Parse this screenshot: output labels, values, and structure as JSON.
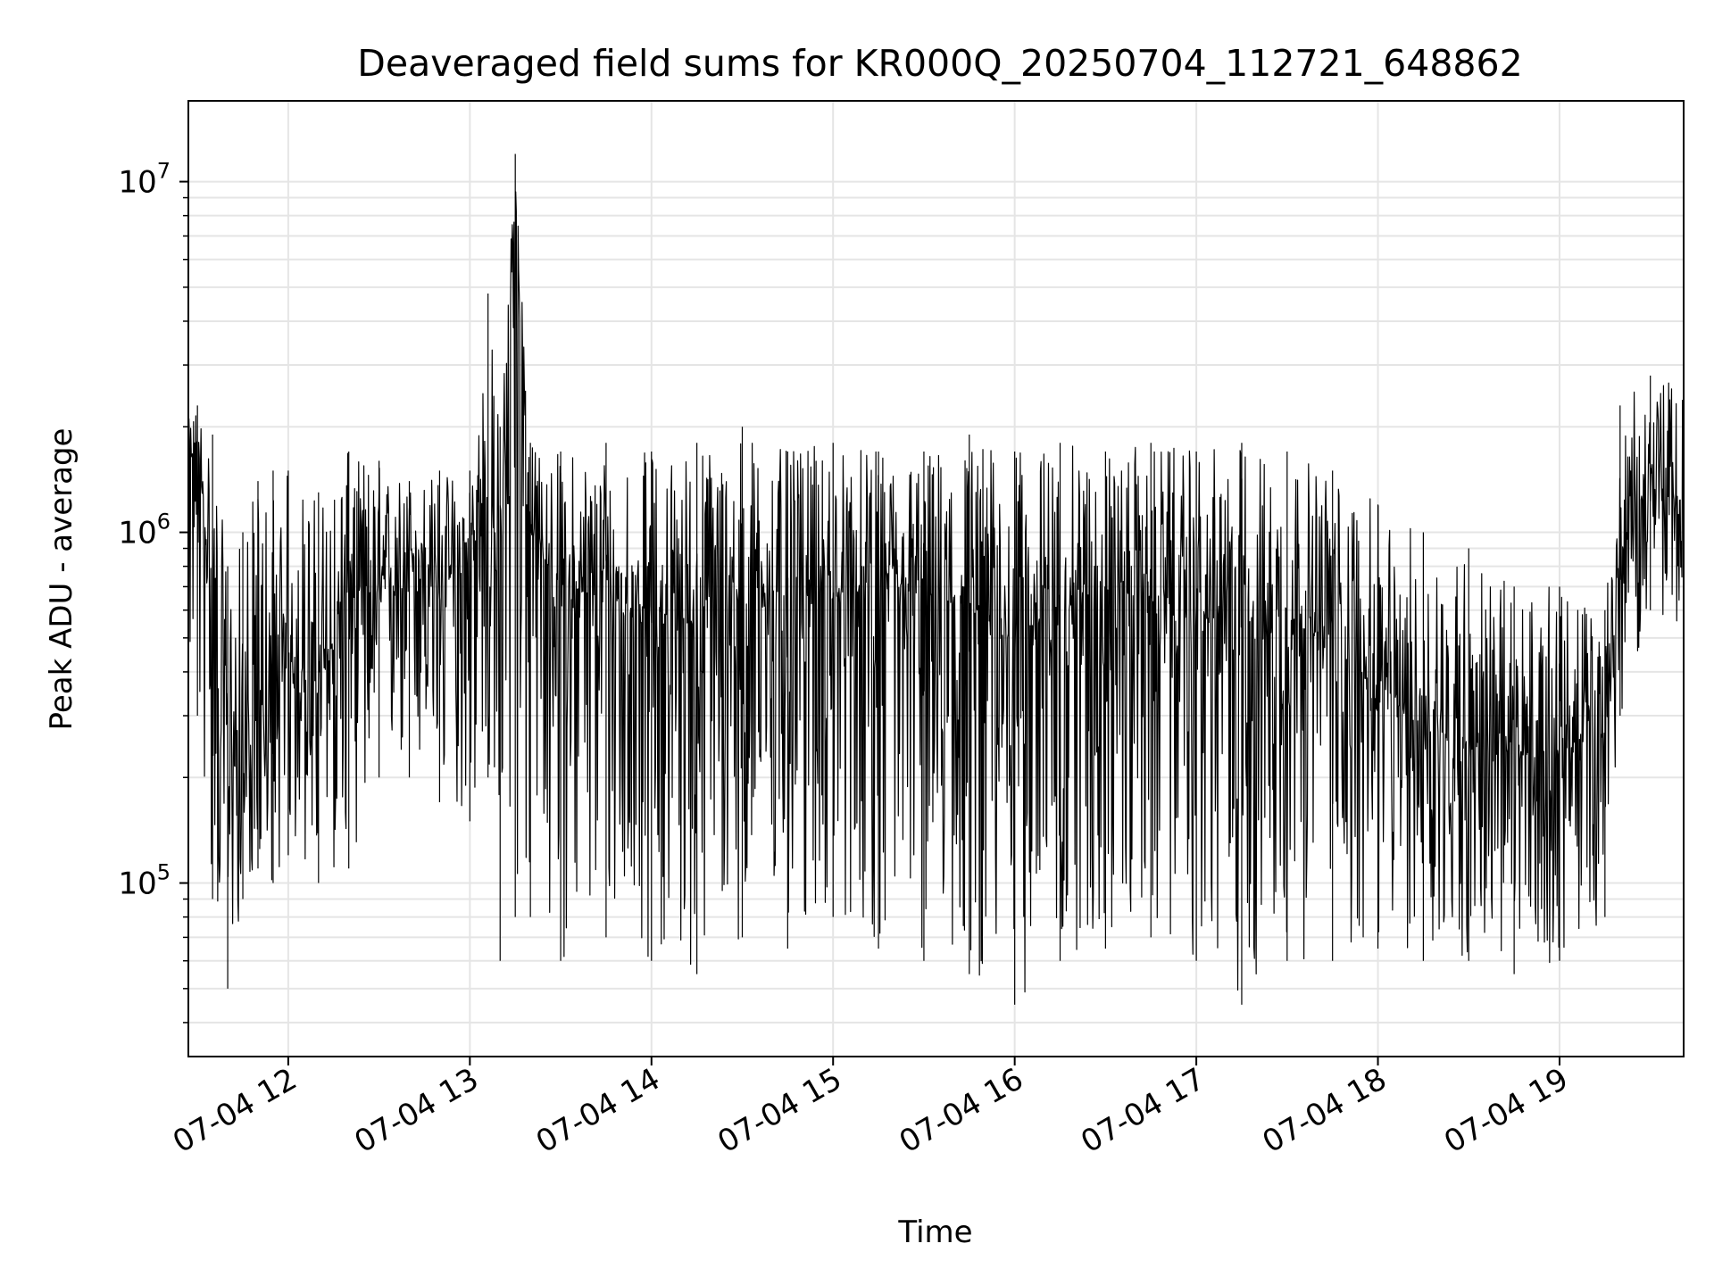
{
  "chart_data": {
    "type": "line",
    "title": "Deaveraged field sums for KR000Q_20250704_112721_648862",
    "xlabel": "Time",
    "ylabel": "Peak ADU - average",
    "yscale": "log",
    "grid": true,
    "line_color": "#000000",
    "grid_color": "#e5e5e5",
    "xlim": [
      "2025-07-04 11:27",
      "2025-07-04 19:41"
    ],
    "ylim": [
      32000,
      17000000
    ],
    "x_ticks": [
      {
        "value": "2025-07-04 12:00",
        "label": "07-04 12"
      },
      {
        "value": "2025-07-04 13:00",
        "label": "07-04 13"
      },
      {
        "value": "2025-07-04 14:00",
        "label": "07-04 14"
      },
      {
        "value": "2025-07-04 15:00",
        "label": "07-04 15"
      },
      {
        "value": "2025-07-04 16:00",
        "label": "07-04 16"
      },
      {
        "value": "2025-07-04 17:00",
        "label": "07-04 17"
      },
      {
        "value": "2025-07-04 18:00",
        "label": "07-04 18"
      },
      {
        "value": "2025-07-04 19:00",
        "label": "07-04 19"
      }
    ],
    "y_ticks": [
      {
        "value": 100000,
        "base": "10",
        "exp": "5"
      },
      {
        "value": 1000000,
        "base": "10",
        "exp": "6"
      },
      {
        "value": 10000000,
        "base": "10",
        "exp": "7"
      }
    ],
    "series": [
      {
        "x": [
          "2025-07-04 11:27",
          "2025-07-04 11:30",
          "2025-07-04 11:35",
          "2025-07-04 11:40",
          "2025-07-04 11:45",
          "2025-07-04 11:50",
          "2025-07-04 11:55",
          "2025-07-04 12:00",
          "2025-07-04 12:10",
          "2025-07-04 12:20",
          "2025-07-04 12:30",
          "2025-07-04 12:40",
          "2025-07-04 12:50",
          "2025-07-04 13:00",
          "2025-07-04 13:06",
          "2025-07-04 13:10",
          "2025-07-04 13:15",
          "2025-07-04 13:20",
          "2025-07-04 13:30",
          "2025-07-04 13:45",
          "2025-07-04 14:00",
          "2025-07-04 14:15",
          "2025-07-04 14:30",
          "2025-07-04 14:45",
          "2025-07-04 15:00",
          "2025-07-04 15:15",
          "2025-07-04 15:30",
          "2025-07-04 15:45",
          "2025-07-04 16:00",
          "2025-07-04 16:15",
          "2025-07-04 16:30",
          "2025-07-04 16:45",
          "2025-07-04 17:00",
          "2025-07-04 17:15",
          "2025-07-04 17:30",
          "2025-07-04 17:45",
          "2025-07-04 18:00",
          "2025-07-04 18:15",
          "2025-07-04 18:30",
          "2025-07-04 18:45",
          "2025-07-04 19:00",
          "2025-07-04 19:15",
          "2025-07-04 19:20",
          "2025-07-04 19:30",
          "2025-07-04 19:41"
        ],
        "y": [
          1500000,
          1800000,
          600000,
          250000,
          200000,
          300000,
          250000,
          450000,
          350000,
          700000,
          650000,
          900000,
          700000,
          800000,
          1100000,
          900000,
          9000000,
          1000000,
          700000,
          650000,
          600000,
          550000,
          600000,
          700000,
          650000,
          700000,
          650000,
          600000,
          500000,
          600000,
          700000,
          650000,
          550000,
          600000,
          550000,
          500000,
          350000,
          280000,
          250000,
          230000,
          240000,
          260000,
          800000,
          1500000,
          1200000
        ],
        "min": [
          400000,
          300000,
          90000,
          50000,
          90000,
          110000,
          100000,
          120000,
          100000,
          110000,
          200000,
          200000,
          170000,
          150000,
          200000,
          60000,
          80000,
          80000,
          60000,
          70000,
          60000,
          55000,
          70000,
          65000,
          80000,
          65000,
          60000,
          55000,
          45000,
          60000,
          65000,
          70000,
          60000,
          45000,
          60000,
          60000,
          65000,
          60000,
          60000,
          55000,
          60000,
          80000,
          300000,
          600000,
          500000
        ],
        "max": [
          2100000,
          2300000,
          1900000,
          800000,
          1000000,
          1400000,
          1500000,
          1500000,
          1300000,
          1700000,
          1600000,
          1400000,
          1500000,
          1500000,
          4800000,
          2000000,
          12000000,
          1800000,
          1700000,
          1800000,
          1700000,
          1800000,
          2000000,
          1700000,
          1800000,
          1700000,
          1700000,
          1900000,
          1700000,
          1800000,
          1700000,
          1800000,
          1700000,
          1800000,
          1700000,
          1500000,
          1200000,
          1000000,
          900000,
          700000,
          700000,
          600000,
          2300000,
          2800000,
          2600000
        ]
      }
    ]
  }
}
